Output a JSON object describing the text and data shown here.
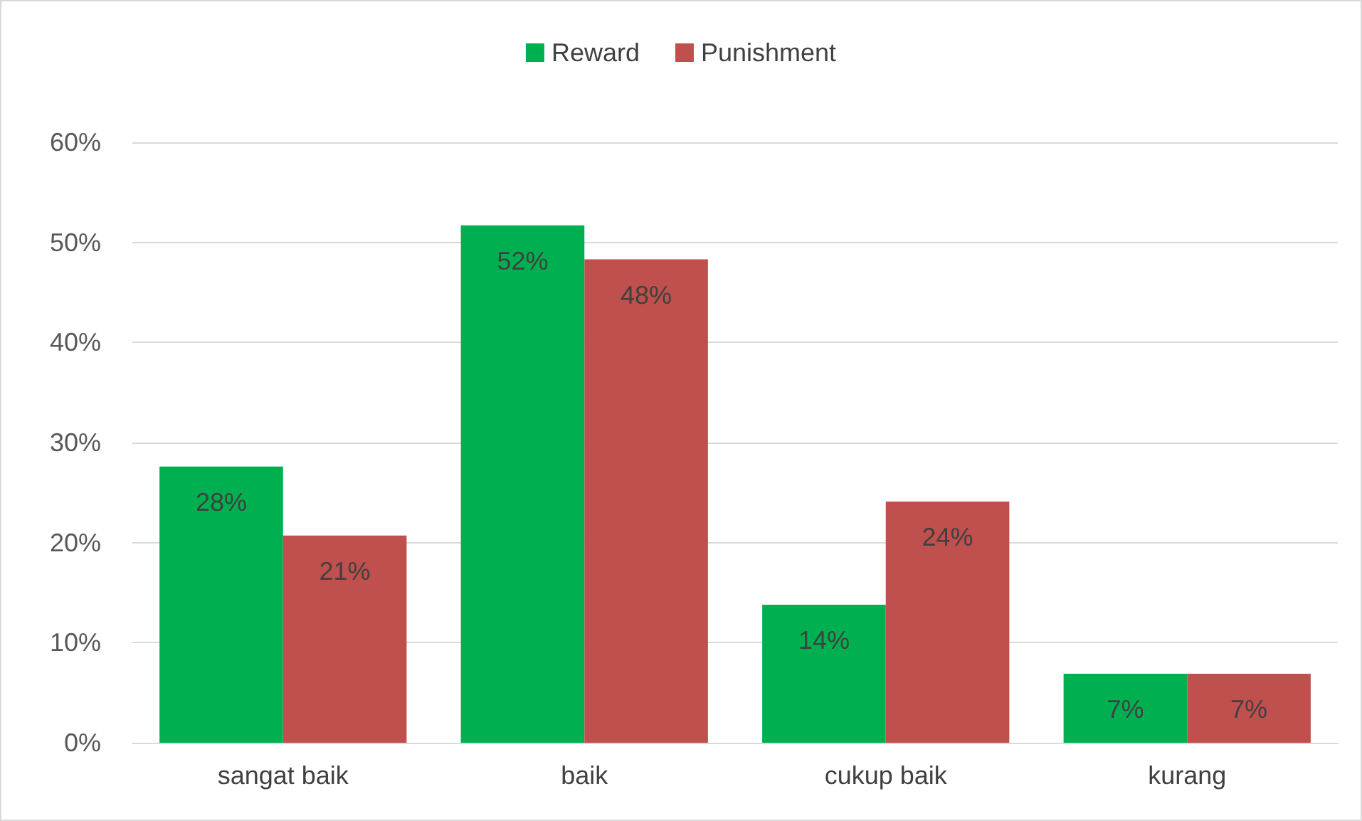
{
  "chart_data": {
    "type": "bar",
    "categories": [
      "sangat baik",
      "baik",
      "cukup baik",
      "kurang"
    ],
    "series": [
      {
        "name": "Reward",
        "color": "#00b050",
        "values": [
          27.6,
          51.7,
          13.8,
          6.9
        ],
        "value_labels": [
          "28%",
          "52%",
          "14%",
          "7%"
        ]
      },
      {
        "name": "Punishment",
        "color": "#c0504d",
        "values": [
          20.7,
          48.3,
          24.1,
          6.9
        ],
        "value_labels": [
          "21%",
          "48%",
          "24%",
          "7%"
        ]
      }
    ],
    "ylim": [
      0,
      60
    ],
    "yticks": [
      {
        "value": 0,
        "label": "0%"
      },
      {
        "value": 10,
        "label": "10%"
      },
      {
        "value": 20,
        "label": "20%"
      },
      {
        "value": 30,
        "label": "30%"
      },
      {
        "value": 40,
        "label": "40%"
      },
      {
        "value": 50,
        "label": "50%"
      },
      {
        "value": 60,
        "label": "60%"
      }
    ],
    "grid": "y",
    "legend": "top"
  }
}
